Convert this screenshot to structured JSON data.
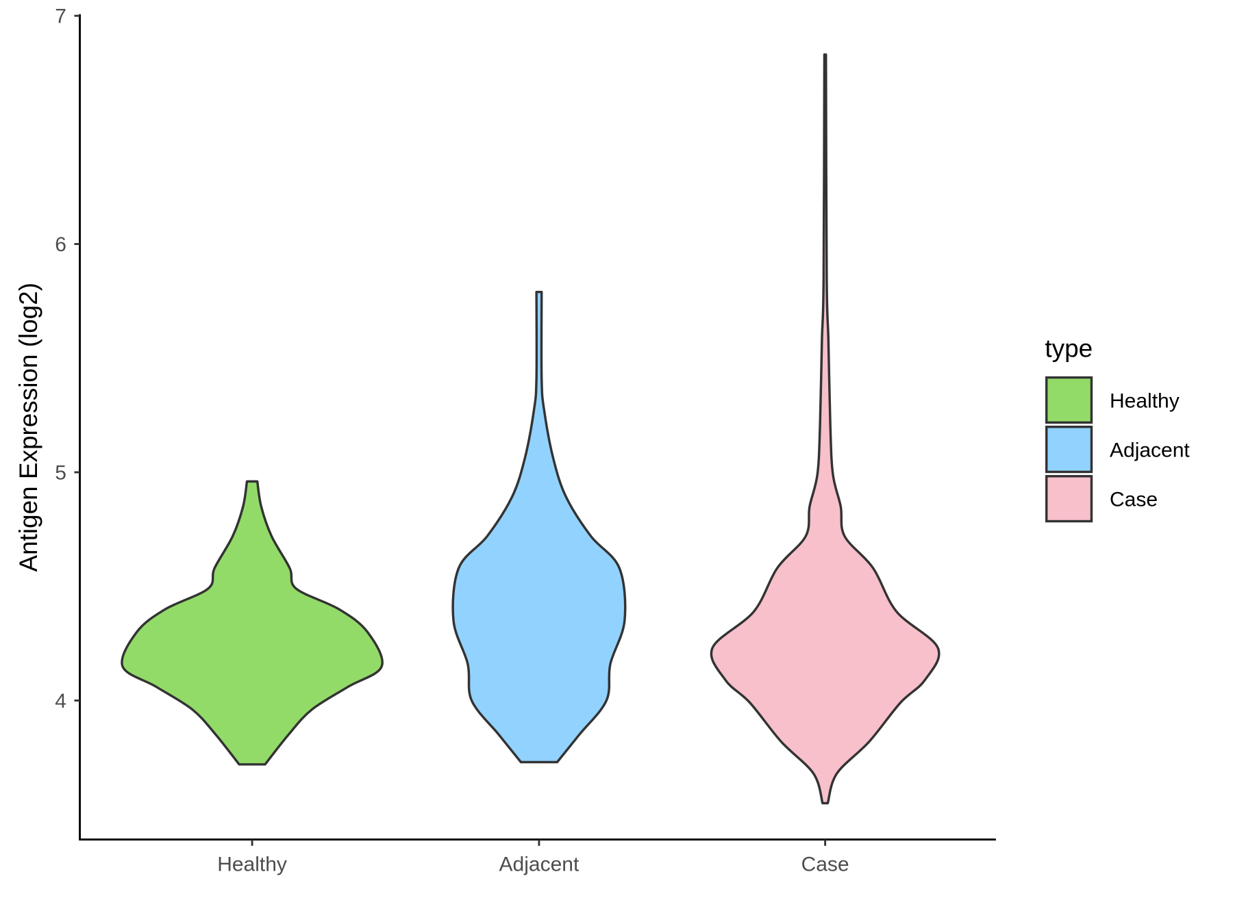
{
  "chart_data": {
    "type": "violin",
    "title": "",
    "xlabel": "",
    "ylabel": "Antigen Expression (log2)",
    "ylim": [
      3.39,
      7.0
    ],
    "yticks": [
      4,
      5,
      6,
      7
    ],
    "ytick_labels": [
      "4",
      "5",
      "6",
      "7"
    ],
    "categories": [
      "Healthy",
      "Adjacent",
      "Case"
    ],
    "grid": false,
    "legend": {
      "title": "type",
      "position": "right",
      "entries": [
        "Healthy",
        "Adjacent",
        "Case"
      ]
    },
    "series": [
      {
        "name": "Healthy",
        "color": "#93DB69",
        "profile": [
          [
            4.96,
            0.04
          ],
          [
            4.85,
            0.07
          ],
          [
            4.72,
            0.15
          ],
          [
            4.58,
            0.29
          ],
          [
            4.49,
            0.34
          ],
          [
            4.4,
            0.67
          ],
          [
            4.3,
            0.89
          ],
          [
            4.15,
            1.0
          ],
          [
            4.06,
            0.74
          ],
          [
            3.96,
            0.46
          ],
          [
            3.85,
            0.28
          ],
          [
            3.72,
            0.1
          ]
        ]
      },
      {
        "name": "Adjacent",
        "color": "#92D2FE",
        "profile": [
          [
            5.79,
            0.02
          ],
          [
            5.41,
            0.02
          ],
          [
            5.27,
            0.04
          ],
          [
            5.06,
            0.11
          ],
          [
            4.89,
            0.21
          ],
          [
            4.72,
            0.4
          ],
          [
            4.58,
            0.62
          ],
          [
            4.35,
            0.66
          ],
          [
            4.16,
            0.55
          ],
          [
            4.0,
            0.52
          ],
          [
            3.85,
            0.31
          ],
          [
            3.73,
            0.14
          ]
        ]
      },
      {
        "name": "Case",
        "color": "#F7C0CB",
        "profile": [
          [
            6.83,
            0.006
          ],
          [
            5.85,
            0.012
          ],
          [
            5.58,
            0.025
          ],
          [
            5.2,
            0.04
          ],
          [
            4.99,
            0.06
          ],
          [
            4.85,
            0.12
          ],
          [
            4.72,
            0.15
          ],
          [
            4.58,
            0.37
          ],
          [
            4.39,
            0.55
          ],
          [
            4.23,
            0.87
          ],
          [
            4.09,
            0.77
          ],
          [
            3.99,
            0.58
          ],
          [
            3.82,
            0.34
          ],
          [
            3.68,
            0.09
          ],
          [
            3.55,
            0.02
          ]
        ]
      }
    ]
  }
}
